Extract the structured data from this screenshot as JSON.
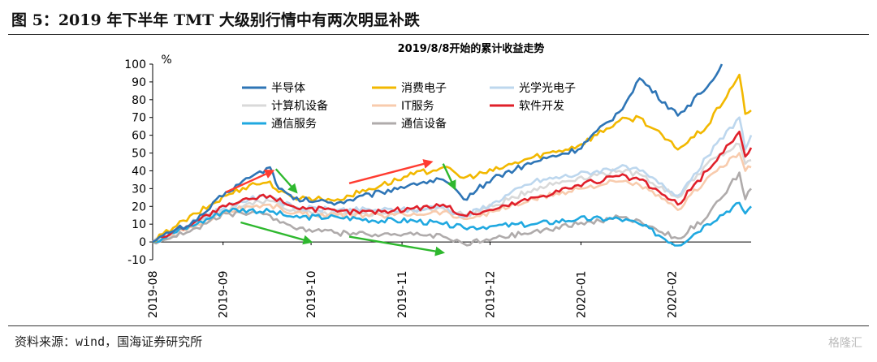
{
  "figure": {
    "title": "图 5：2019 年下半年 TMT 大级别行情中有两次明显补跌",
    "source": "资料来源：wind，国海证券研究所",
    "watermark": "格隆汇"
  },
  "chart_data": {
    "type": "line",
    "title": "2019/8/8开始的累计收益走势",
    "ylabel": "%",
    "ylim": [
      -10,
      100
    ],
    "yticks": [
      -10,
      0,
      10,
      20,
      30,
      40,
      50,
      60,
      70,
      80,
      90,
      100
    ],
    "xlim": [
      "2019-08-08",
      "2020-02-28"
    ],
    "xticks": [
      "2019-08",
      "2019-09",
      "2019-10",
      "2019-11",
      "2019-12",
      "2020-01",
      "2020-02"
    ],
    "xtick_dates": [
      "2019-08-01",
      "2019-09-01",
      "2019-10-01",
      "2019-11-01",
      "2019-12-01",
      "2020-01-01",
      "2020-02-01"
    ],
    "legend_placement": "top-left",
    "series": [
      {
        "name": "半导体",
        "color": "#2E75B6",
        "x": [
          "2019-08-08",
          "2019-08-15",
          "2019-08-23",
          "2019-09-02",
          "2019-09-10",
          "2019-09-17",
          "2019-09-20",
          "2019-09-25",
          "2019-10-10",
          "2019-10-25",
          "2019-11-05",
          "2019-11-15",
          "2019-11-22",
          "2019-12-02",
          "2019-12-16",
          "2019-12-31",
          "2020-01-14",
          "2020-01-21",
          "2020-02-03",
          "2020-02-13",
          "2020-02-18"
        ],
        "y": [
          0,
          6,
          12,
          28,
          36,
          42,
          30,
          24,
          22,
          28,
          33,
          35,
          24,
          36,
          45,
          52,
          73,
          92,
          71,
          87,
          100
        ]
      },
      {
        "name": "消费电子",
        "color": "#F2B800",
        "x": [
          "2019-08-08",
          "2019-08-15",
          "2019-08-23",
          "2019-09-02",
          "2019-09-10",
          "2019-09-17",
          "2019-09-20",
          "2019-09-25",
          "2019-10-10",
          "2019-10-25",
          "2019-11-05",
          "2019-11-15",
          "2019-11-22",
          "2019-12-02",
          "2019-12-16",
          "2019-12-31",
          "2020-01-14",
          "2020-01-21",
          "2020-02-03",
          "2020-02-13",
          "2020-02-24",
          "2020-02-26",
          "2020-02-28"
        ],
        "y": [
          0,
          8,
          16,
          26,
          32,
          34,
          28,
          25,
          24,
          32,
          38,
          42,
          36,
          40,
          48,
          54,
          68,
          70,
          52,
          65,
          94,
          72,
          74
        ]
      },
      {
        "name": "光学光电子",
        "color": "#BDD7EE",
        "x": [
          "2019-08-08",
          "2019-08-15",
          "2019-08-23",
          "2019-09-02",
          "2019-09-10",
          "2019-09-17",
          "2019-09-25",
          "2019-10-10",
          "2019-10-25",
          "2019-11-05",
          "2019-11-15",
          "2019-11-22",
          "2019-12-02",
          "2019-12-16",
          "2019-12-31",
          "2020-01-14",
          "2020-01-21",
          "2020-02-03",
          "2020-02-13",
          "2020-02-24",
          "2020-02-26",
          "2020-02-28"
        ],
        "y": [
          0,
          5,
          12,
          20,
          24,
          26,
          19,
          18,
          18,
          18,
          20,
          14,
          22,
          34,
          38,
          42,
          40,
          26,
          48,
          70,
          52,
          60
        ]
      },
      {
        "name": "计算机设备",
        "color": "#D9D9D9",
        "x": [
          "2019-08-08",
          "2019-08-15",
          "2019-08-23",
          "2019-09-02",
          "2019-09-10",
          "2019-09-17",
          "2019-09-25",
          "2019-10-10",
          "2019-10-25",
          "2019-11-05",
          "2019-11-15",
          "2019-11-22",
          "2019-12-02",
          "2019-12-16",
          "2019-12-31",
          "2020-01-14",
          "2020-01-21",
          "2020-02-03",
          "2020-02-13",
          "2020-02-24",
          "2020-02-26",
          "2020-02-28"
        ],
        "y": [
          0,
          4,
          10,
          18,
          22,
          23,
          18,
          16,
          16,
          17,
          19,
          15,
          20,
          30,
          36,
          40,
          38,
          25,
          44,
          55,
          44,
          46
        ]
      },
      {
        "name": "IT服务",
        "color": "#F8CBAD",
        "x": [
          "2019-08-08",
          "2019-08-15",
          "2019-08-23",
          "2019-09-02",
          "2019-09-10",
          "2019-09-17",
          "2019-09-25",
          "2019-10-10",
          "2019-10-25",
          "2019-11-05",
          "2019-11-15",
          "2019-11-22",
          "2019-12-02",
          "2019-12-16",
          "2019-12-31",
          "2020-01-14",
          "2020-01-21",
          "2020-02-03",
          "2020-02-13",
          "2020-02-24",
          "2020-02-26",
          "2020-02-28"
        ],
        "y": [
          0,
          4,
          10,
          17,
          20,
          21,
          16,
          15,
          15,
          16,
          17,
          13,
          17,
          24,
          30,
          34,
          32,
          18,
          36,
          50,
          40,
          42
        ]
      },
      {
        "name": "软件开发",
        "color": "#E0202A",
        "x": [
          "2019-08-08",
          "2019-08-15",
          "2019-08-23",
          "2019-09-02",
          "2019-09-10",
          "2019-09-17",
          "2019-09-25",
          "2019-10-10",
          "2019-10-25",
          "2019-11-05",
          "2019-11-15",
          "2019-11-22",
          "2019-12-02",
          "2019-12-16",
          "2019-12-31",
          "2020-01-14",
          "2020-01-21",
          "2020-02-03",
          "2020-02-13",
          "2020-02-24",
          "2020-02-26",
          "2020-02-28"
        ],
        "y": [
          0,
          6,
          12,
          20,
          24,
          26,
          20,
          17,
          17,
          19,
          21,
          15,
          18,
          25,
          32,
          37,
          35,
          21,
          40,
          62,
          48,
          53
        ]
      },
      {
        "name": "通信服务",
        "color": "#1FA8E0",
        "x": [
          "2019-08-08",
          "2019-08-15",
          "2019-08-23",
          "2019-09-02",
          "2019-09-10",
          "2019-09-17",
          "2019-09-25",
          "2019-10-10",
          "2019-10-25",
          "2019-11-05",
          "2019-11-15",
          "2019-11-22",
          "2019-12-02",
          "2019-12-16",
          "2019-12-31",
          "2020-01-14",
          "2020-01-21",
          "2020-02-03",
          "2020-02-13",
          "2020-02-24",
          "2020-02-26",
          "2020-02-28"
        ],
        "y": [
          0,
          5,
          10,
          18,
          18,
          17,
          14,
          14,
          12,
          12,
          10,
          8,
          9,
          10,
          13,
          13,
          10,
          -2,
          10,
          22,
          16,
          20
        ]
      },
      {
        "name": "通信设备",
        "color": "#AFABAB",
        "x": [
          "2019-08-08",
          "2019-08-15",
          "2019-08-23",
          "2019-09-02",
          "2019-09-10",
          "2019-09-17",
          "2019-09-25",
          "2019-10-10",
          "2019-10-25",
          "2019-11-05",
          "2019-11-15",
          "2019-11-22",
          "2019-12-02",
          "2019-12-16",
          "2019-12-31",
          "2020-01-14",
          "2020-01-21",
          "2020-02-03",
          "2020-02-13",
          "2020-02-24",
          "2020-02-26",
          "2020-02-28"
        ],
        "y": [
          0,
          3,
          8,
          16,
          16,
          15,
          8,
          5,
          4,
          4,
          3,
          -1,
          2,
          6,
          10,
          14,
          12,
          2,
          14,
          39,
          24,
          30
        ]
      }
    ],
    "annotations": [
      {
        "type": "up-arrow",
        "color": "#FF3B30",
        "from": [
          "2019-09-02",
          28
        ],
        "to": [
          "2019-09-18",
          40
        ]
      },
      {
        "type": "down-arrow",
        "color": "#2EB82E",
        "from": [
          "2019-09-19",
          41
        ],
        "to": [
          "2019-09-26",
          28
        ]
      },
      {
        "type": "down-arrow",
        "color": "#2EB82E",
        "from": [
          "2019-09-07",
          11
        ],
        "to": [
          "2019-10-01",
          0
        ]
      },
      {
        "type": "up-arrow",
        "color": "#FF3B30",
        "from": [
          "2019-10-14",
          33
        ],
        "to": [
          "2019-11-11",
          45
        ]
      },
      {
        "type": "down-arrow",
        "color": "#2EB82E",
        "from": [
          "2019-11-15",
          44
        ],
        "to": [
          "2019-11-19",
          30
        ]
      },
      {
        "type": "down-arrow",
        "color": "#2EB82E",
        "from": [
          "2019-10-14",
          3
        ],
        "to": [
          "2019-11-15",
          -6
        ]
      }
    ]
  }
}
